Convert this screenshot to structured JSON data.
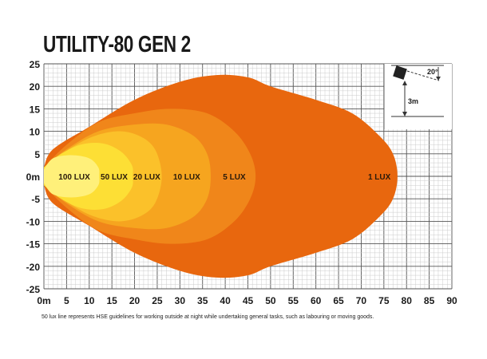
{
  "chart_data": {
    "type": "area",
    "title": "UTILITY-80 GEN 2",
    "xlim": [
      0,
      90
    ],
    "ylim": [
      -25,
      25
    ],
    "x_ticks": [
      "0m",
      "5",
      "10",
      "15",
      "20",
      "25",
      "30",
      "35",
      "40",
      "45",
      "50",
      "55",
      "60",
      "65",
      "70",
      "75",
      "80",
      "85",
      "90"
    ],
    "y_ticks": [
      "25",
      "20",
      "15",
      "10",
      "5",
      "0m",
      "-5",
      "-10",
      "-15",
      "-20",
      "-25"
    ],
    "grid": true,
    "series": [
      {
        "name": "1 LUX",
        "color": "#E8670E",
        "label_x": 74,
        "points": [
          [
            0,
            2
          ],
          [
            2,
            6
          ],
          [
            10,
            11
          ],
          [
            20,
            17
          ],
          [
            30,
            21
          ],
          [
            38,
            22.5
          ],
          [
            45,
            22
          ],
          [
            50,
            20
          ],
          [
            60,
            17
          ],
          [
            68,
            14
          ],
          [
            74,
            9
          ],
          [
            77,
            5
          ],
          [
            78,
            0
          ]
        ]
      },
      {
        "name": "5 LUX",
        "color": "#F0861A",
        "label_x": 42,
        "points": [
          [
            0,
            2
          ],
          [
            5,
            7
          ],
          [
            12,
            12
          ],
          [
            20,
            14
          ],
          [
            28,
            15
          ],
          [
            36,
            14
          ],
          [
            42,
            10
          ],
          [
            45.5,
            5
          ],
          [
            46.7,
            0
          ]
        ]
      },
      {
        "name": "10 LUX",
        "color": "#F6A51F",
        "label_x": 31.5,
        "points": [
          [
            0,
            2
          ],
          [
            5,
            6
          ],
          [
            12,
            10
          ],
          [
            20,
            11.5
          ],
          [
            27,
            11.5
          ],
          [
            33,
            9
          ],
          [
            36,
            5
          ],
          [
            36.8,
            0
          ]
        ]
      },
      {
        "name": "20 LUX",
        "color": "#FBC12A",
        "label_x": 22.7,
        "points": [
          [
            0,
            2
          ],
          [
            4,
            5
          ],
          [
            10,
            8.5
          ],
          [
            16,
            10
          ],
          [
            21,
            9
          ],
          [
            24.5,
            6
          ],
          [
            26,
            0
          ]
        ]
      },
      {
        "name": "50 LUX",
        "color": "#FDDF35",
        "label_x": 15.5,
        "points": [
          [
            0,
            2
          ],
          [
            3,
            4.5
          ],
          [
            8,
            7
          ],
          [
            13,
            7.3
          ],
          [
            17,
            5.5
          ],
          [
            19.4,
            2.5
          ],
          [
            19.6,
            0
          ]
        ]
      },
      {
        "name": "100 LUX",
        "color": "#FFF07A",
        "label_x": 6.7,
        "points": [
          [
            0,
            1.5
          ],
          [
            2,
            4
          ],
          [
            6,
            4.7
          ],
          [
            10,
            4
          ],
          [
            12,
            2
          ],
          [
            12.2,
            0
          ]
        ]
      }
    ]
  },
  "inset": {
    "angle_label": "20°",
    "height_label": "3m"
  },
  "footnote": "50 lux line represents HSE guidelines for working outside at night while undertaking general tasks, such as labouring or moving goods."
}
